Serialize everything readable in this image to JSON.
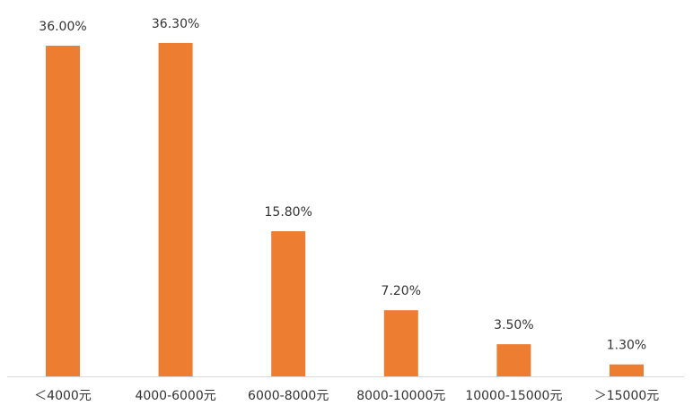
{
  "chart_data": {
    "type": "bar",
    "categories": [
      "＜4000元",
      "4000-6000元",
      "6000-8000元",
      "8000-10000元",
      "10000-15000元",
      "＞15000元"
    ],
    "values": [
      36.0,
      36.3,
      15.8,
      7.2,
      3.5,
      1.3
    ],
    "value_labels": [
      "36.00%",
      "36.30%",
      "15.80%",
      "7.20%",
      "3.50%",
      "1.30%"
    ],
    "color": "#ed7d31"
  }
}
